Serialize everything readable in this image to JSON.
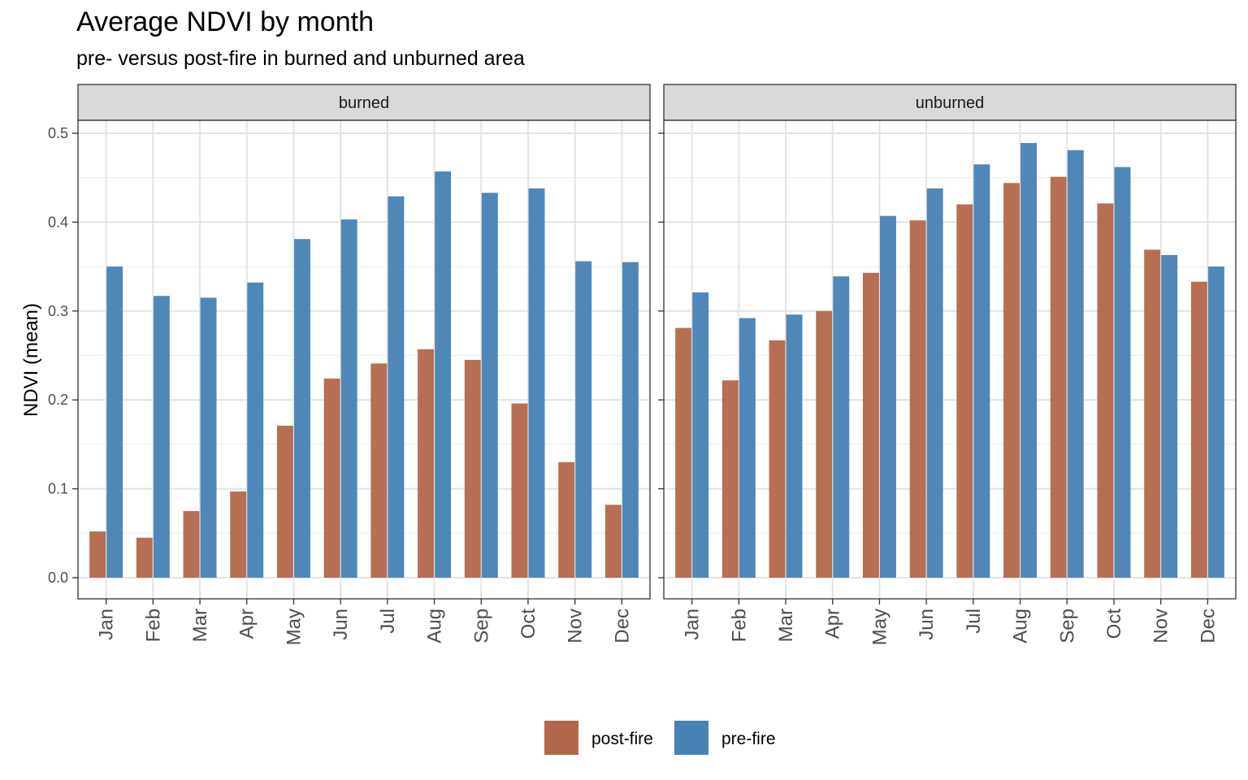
{
  "chart_data": {
    "type": "bar",
    "title": "Average NDVI by month",
    "subtitle": "pre- versus post-fire in burned and unburned area",
    "xlabel": "",
    "ylabel": "NDVI (mean)",
    "ylim": [
      0,
      0.52
    ],
    "yticks": [
      "0.0",
      "0.1",
      "0.2",
      "0.3",
      "0.4",
      "0.5"
    ],
    "grid": true,
    "legend_position": "bottom",
    "categories": [
      "Jan",
      "Feb",
      "Mar",
      "Apr",
      "May",
      "Jun",
      "Jul",
      "Aug",
      "Sep",
      "Oct",
      "Nov",
      "Dec"
    ],
    "legend": [
      {
        "name": "post-fire",
        "color": "#b2674a"
      },
      {
        "name": "pre-fire",
        "color": "#4682b4"
      }
    ],
    "panels": [
      {
        "label": "burned",
        "series": [
          {
            "name": "post-fire",
            "values": [
              0.052,
              0.045,
              0.075,
              0.097,
              0.171,
              0.224,
              0.241,
              0.257,
              0.245,
              0.196,
              0.13,
              0.082
            ]
          },
          {
            "name": "pre-fire",
            "values": [
              0.35,
              0.317,
              0.315,
              0.332,
              0.381,
              0.403,
              0.429,
              0.457,
              0.433,
              0.438,
              0.356,
              0.355
            ]
          }
        ]
      },
      {
        "label": "unburned",
        "series": [
          {
            "name": "post-fire",
            "values": [
              0.281,
              0.222,
              0.267,
              0.3,
              0.343,
              0.402,
              0.42,
              0.444,
              0.451,
              0.421,
              0.369,
              0.333
            ]
          },
          {
            "name": "pre-fire",
            "values": [
              0.321,
              0.292,
              0.296,
              0.339,
              0.407,
              0.438,
              0.465,
              0.489,
              0.481,
              0.462,
              0.363,
              0.35
            ]
          }
        ]
      }
    ]
  }
}
